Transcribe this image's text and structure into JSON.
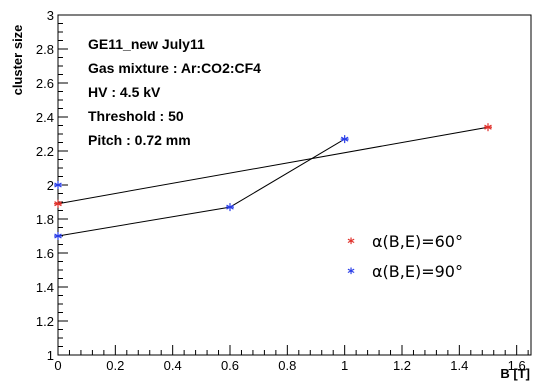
{
  "chart_data": {
    "type": "scatter",
    "title": "",
    "xlabel": "B [T]",
    "ylabel": "cluster size",
    "xlim": [
      0,
      1.65
    ],
    "ylim": [
      1,
      3
    ],
    "x_ticks": [
      "0",
      "0.2",
      "0.4",
      "0.6",
      "0.8",
      "1",
      "1.2",
      "1.4",
      "1.6"
    ],
    "y_ticks": [
      "1",
      "1.2",
      "1.4",
      "1.6",
      "1.8",
      "2",
      "2.2",
      "2.4",
      "2.6",
      "2.8",
      "3"
    ],
    "annotations": [
      "GE11_new   July11",
      "Gas mixture : Ar:CO2:CF4",
      "HV : 4.5 kV",
      "Threshold : 50",
      "Pitch : 0.72 mm"
    ],
    "legend_position": "right",
    "series": [
      {
        "name": "α(B,E)=60°",
        "color": "#e0302a",
        "marker": "*",
        "points": [
          {
            "x": 0,
            "y": 1.89
          },
          {
            "x": 1.5,
            "y": 2.34
          }
        ]
      },
      {
        "name": "α(B,E)=90°",
        "color": "#2a3ee8",
        "marker": "*",
        "points": [
          {
            "x": 0,
            "y": 2.0
          },
          {
            "x": 0,
            "y": 1.7
          },
          {
            "x": 0.6,
            "y": 1.87
          },
          {
            "x": 1,
            "y": 2.27
          }
        ]
      }
    ],
    "fit_lines": [
      {
        "x": [
          0,
          1.5
        ],
        "y": [
          1.89,
          2.34
        ]
      },
      {
        "x": [
          0,
          0.6,
          1
        ],
        "y": [
          1.7,
          1.87,
          2.27
        ]
      }
    ]
  }
}
